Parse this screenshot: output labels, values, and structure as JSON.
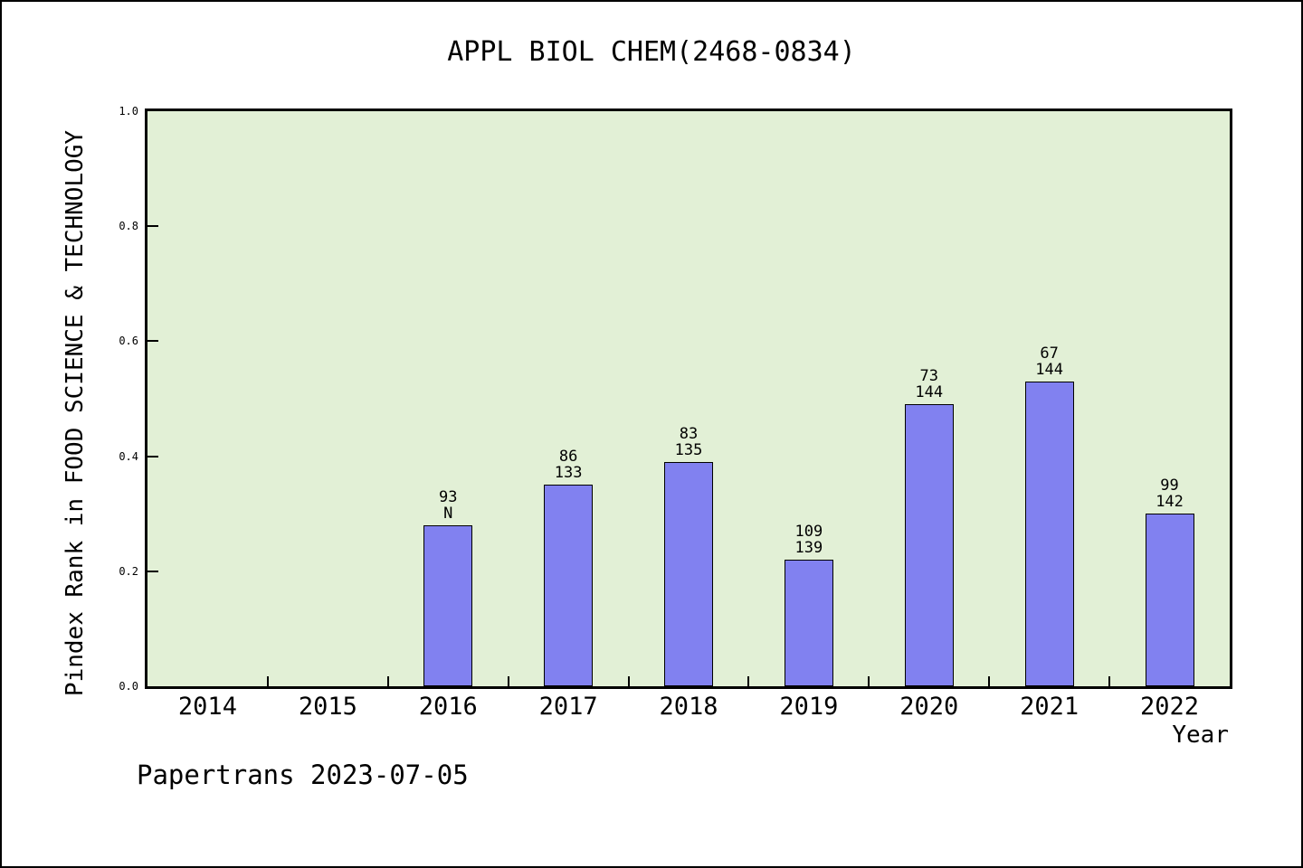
{
  "chart_data": {
    "type": "bar",
    "title": "APPL BIOL CHEM(2468-0834)",
    "xlabel": "Year",
    "ylabel": "Pindex Rank in FOOD SCIENCE & TECHNOLOGY",
    "footer": "Papertrans 2023-07-05",
    "categories": [
      "2014",
      "2015",
      "2016",
      "2017",
      "2018",
      "2019",
      "2020",
      "2021",
      "2022"
    ],
    "values": [
      null,
      null,
      0.28,
      0.35,
      0.39,
      0.22,
      0.49,
      0.53,
      0.3
    ],
    "bar_labels": [
      null,
      null,
      [
        "93",
        "N"
      ],
      [
        "86",
        "133"
      ],
      [
        "83",
        "135"
      ],
      [
        "109",
        "139"
      ],
      [
        "73",
        "144"
      ],
      [
        "67",
        "144"
      ],
      [
        "99",
        "142"
      ]
    ],
    "ylim": [
      0.0,
      1.0
    ],
    "ytick_labels": [
      "0.0",
      "0.2",
      "0.4",
      "0.6",
      "0.8",
      "1.0"
    ],
    "grid": false,
    "legend": null,
    "layout_hints": {
      "x_ticks_at_category_boundaries": true,
      "y_ticks_inside": true
    },
    "colors": {
      "bar_fill": "#8181f0",
      "bar_border": "#000000",
      "plot_background": "#e2f0d6",
      "figure_background": "#ffffff",
      "text": "#000000"
    }
  }
}
